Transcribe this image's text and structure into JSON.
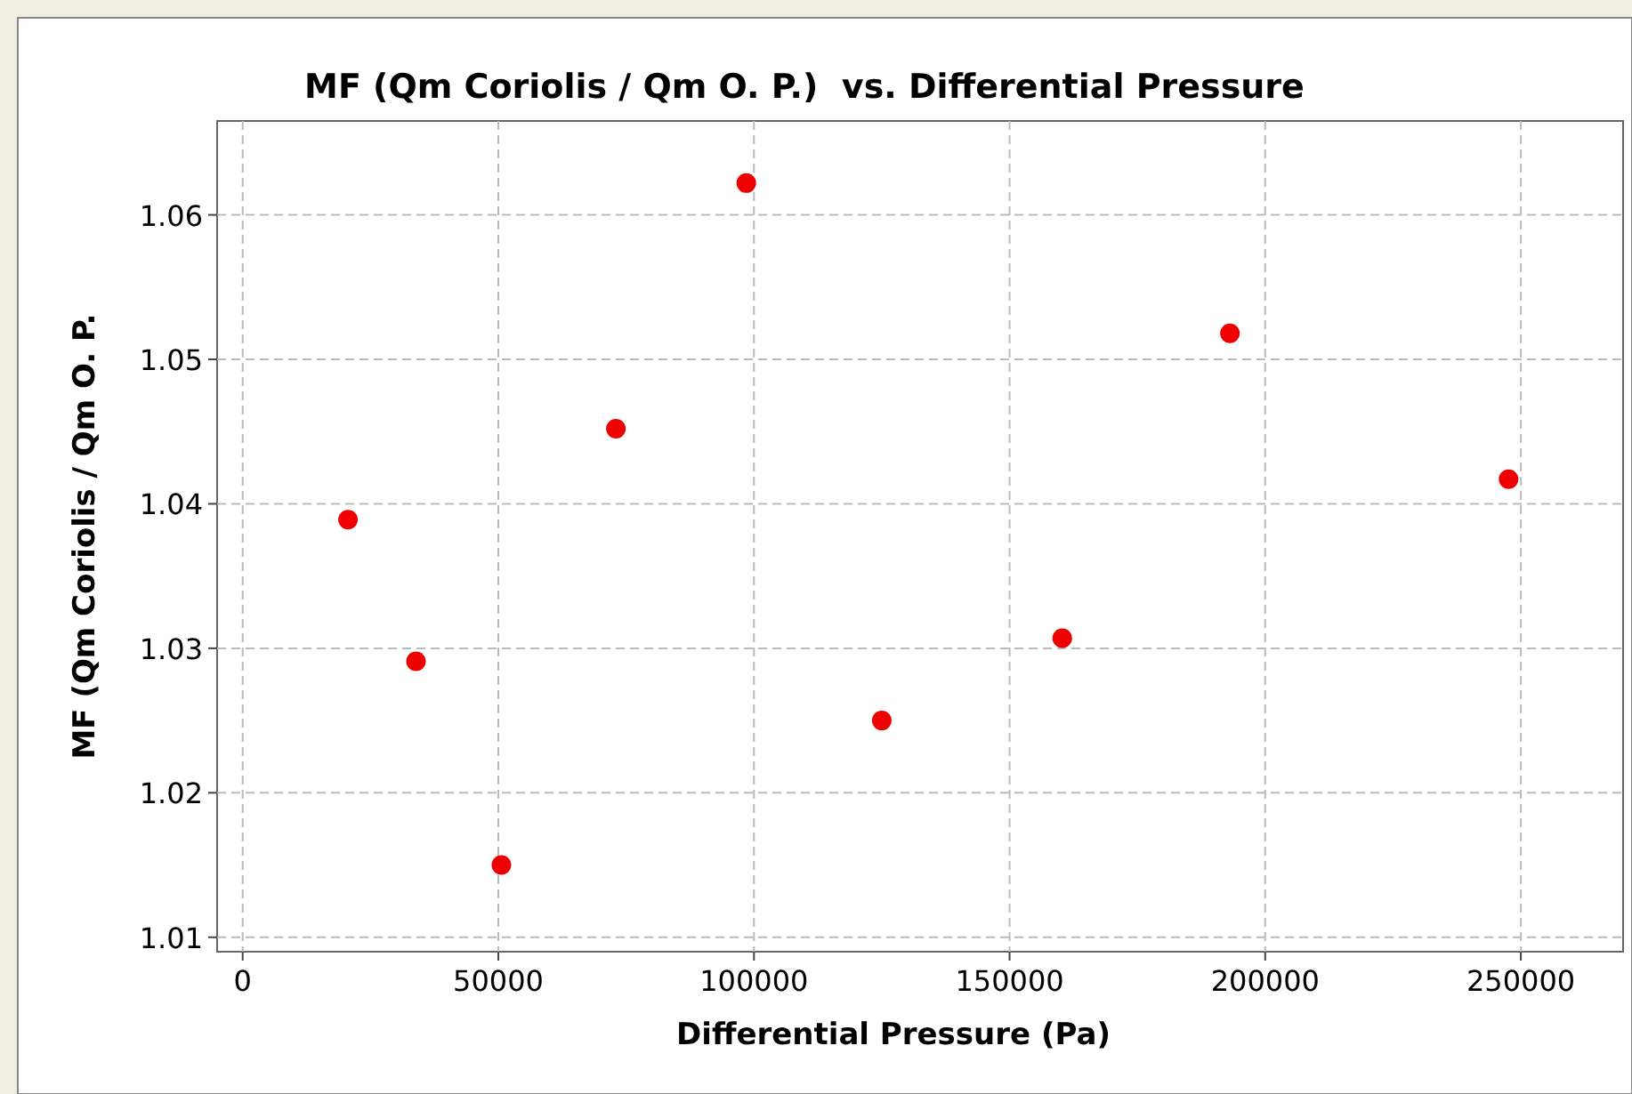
{
  "chart_data": {
    "type": "scatter",
    "title": "MF (Qm Coriolis / Qm O. P.)  vs. Differential Pressure",
    "xlabel": "Differential Pressure (Pa)",
    "ylabel": "MF (Qm Coriolis / Qm O. P.",
    "x": [
      20600,
      33900,
      50600,
      73000,
      98500,
      125000,
      160300,
      193100,
      247600
    ],
    "series": [
      {
        "color": "#ee0000",
        "values": [
          1.0389,
          1.0291,
          1.015,
          1.0452,
          1.0622,
          1.025,
          1.0307,
          1.0518,
          1.0417
        ]
      }
    ],
    "xlim": [
      -5000,
      270000
    ],
    "ylim": [
      1.009,
      1.0665
    ],
    "xticks": [
      0,
      50000,
      100000,
      150000,
      200000,
      250000
    ],
    "yticks": [
      1.01,
      1.02,
      1.03,
      1.04,
      1.05,
      1.06
    ],
    "grid": true,
    "marker": "circle"
  }
}
